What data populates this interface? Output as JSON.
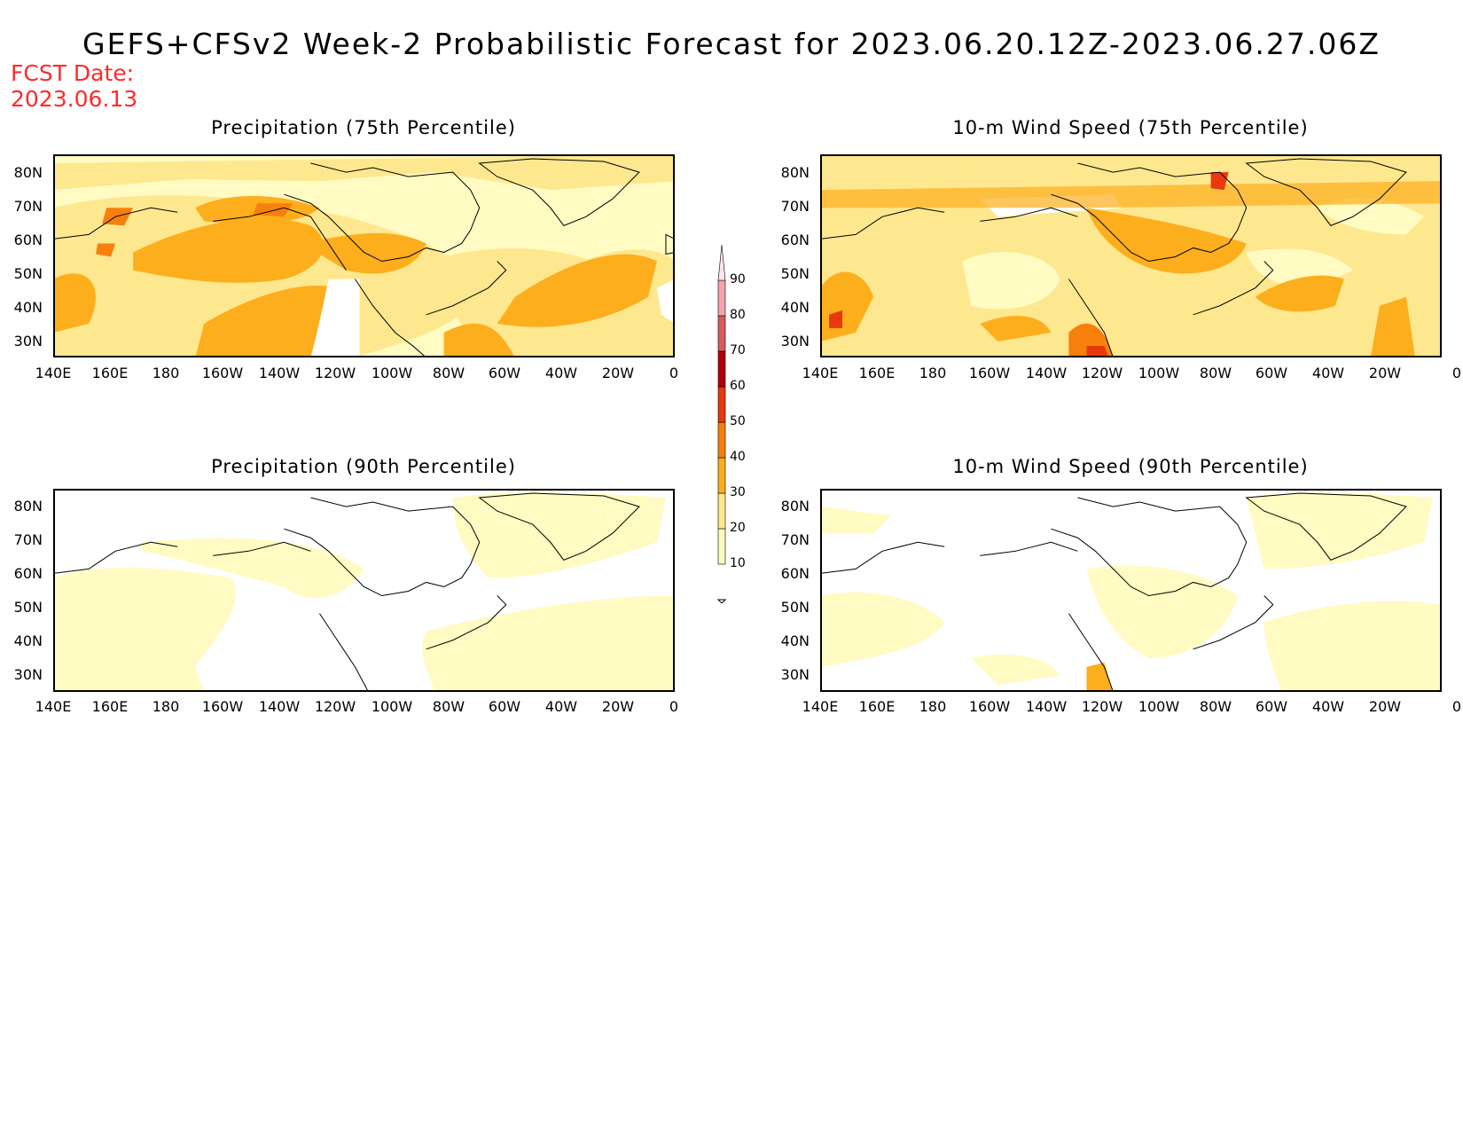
{
  "title": "GEFS+CFSv2 Week-2 Probabilistic Forecast for 2023.06.20.12Z-2023.06.27.06Z",
  "fcst_date": {
    "line1": "FCST Date:",
    "line2": "2023.06.13"
  },
  "panels": [
    {
      "id": "precip75",
      "title": "Precipitation (75th Percentile)"
    },
    {
      "id": "wind75",
      "title": "10-m Wind Speed (75th Percentile)"
    },
    {
      "id": "precip90",
      "title": "Precipitation (90th Percentile)"
    },
    {
      "id": "wind90",
      "title": "10-m Wind Speed (90th Percentile)"
    }
  ],
  "lat_labels": [
    "80N",
    "70N",
    "60N",
    "50N",
    "40N",
    "30N"
  ],
  "lon_labels": [
    "140E",
    "160E",
    "180",
    "160W",
    "140W",
    "120W",
    "100W",
    "80W",
    "60W",
    "40W",
    "20W",
    "0"
  ],
  "colorbar": {
    "levels": [
      "10",
      "20",
      "30",
      "40",
      "50",
      "60",
      "70",
      "80",
      "90"
    ],
    "colors": [
      "#fffbc2",
      "#fee88f",
      "#fdae1d",
      "#f77f0c",
      "#e8390e",
      "#b1000c",
      "#d85c5c",
      "#f3a3ab",
      "#fde5ea"
    ]
  }
}
